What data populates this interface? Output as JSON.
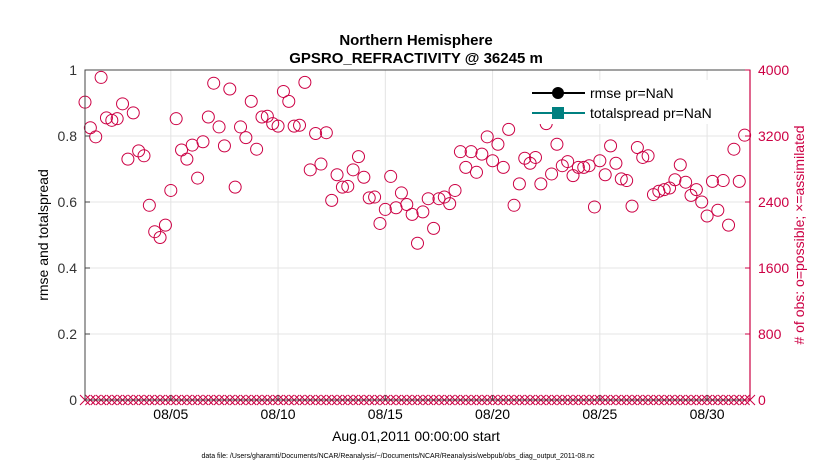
{
  "chart_data": {
    "type": "scatter",
    "title": "Northern Hemisphere",
    "subtitle": "GPSRO_REFRACTIVITY @ 36245 m",
    "xlabel": "Aug.01,2011 00:00:00 start",
    "ylabel_left": "rmse and totalspread",
    "ylabel_right": "# of obs: o=possible; ×=assimilated",
    "footnote": "data file: /Users/gharamti/Documents/NCAR/Reanalysis/~/Documents/NCAR/Reanalysis/webpub/obs_diag_output_2011-08.nc",
    "x_range": [
      1,
      32
    ],
    "ylim_left": [
      0,
      1
    ],
    "ylim_right": [
      0,
      4000
    ],
    "x_ticks": [
      {
        "value": 5,
        "label": "08/05"
      },
      {
        "value": 10,
        "label": "08/10"
      },
      {
        "value": 15,
        "label": "08/15"
      },
      {
        "value": 20,
        "label": "08/20"
      },
      {
        "value": 25,
        "label": "08/25"
      },
      {
        "value": 30,
        "label": "08/30"
      }
    ],
    "y_ticks_left": [
      {
        "value": 0,
        "label": "0"
      },
      {
        "value": 0.2,
        "label": "0.2"
      },
      {
        "value": 0.4,
        "label": "0.4"
      },
      {
        "value": 0.6,
        "label": "0.6"
      },
      {
        "value": 0.8,
        "label": "0.8"
      },
      {
        "value": 1,
        "label": "1"
      }
    ],
    "y_ticks_right": [
      {
        "value": 0,
        "label": "0"
      },
      {
        "value": 800,
        "label": "800"
      },
      {
        "value": 1600,
        "label": "1600"
      },
      {
        "value": 2400,
        "label": "2400"
      },
      {
        "value": 3200,
        "label": "3200"
      },
      {
        "value": 4000,
        "label": "4000"
      }
    ],
    "grid": true,
    "legend_position": "top-right",
    "series": [
      {
        "name": "rmse pr=NaN",
        "axis": "left",
        "color": "#000000",
        "marker": "circle",
        "values": []
      },
      {
        "name": "totalspread pr=NaN",
        "axis": "left",
        "color": "#008080",
        "marker": "square",
        "values": []
      },
      {
        "name": "possible",
        "axis": "right",
        "marker": "circle-open",
        "color": "#cc0044",
        "points": [
          [
            1.0,
            3610
          ],
          [
            1.25,
            3300
          ],
          [
            1.5,
            3190
          ],
          [
            1.75,
            3910
          ],
          [
            2.0,
            3420
          ],
          [
            2.25,
            3390
          ],
          [
            2.5,
            3410
          ],
          [
            2.75,
            3590
          ],
          [
            3.0,
            2920
          ],
          [
            3.25,
            3480
          ],
          [
            3.5,
            3020
          ],
          [
            3.75,
            2960
          ],
          [
            4.0,
            2360
          ],
          [
            4.25,
            2040
          ],
          [
            4.5,
            1970
          ],
          [
            4.75,
            2120
          ],
          [
            5.0,
            2540
          ],
          [
            5.25,
            3410
          ],
          [
            5.5,
            3030
          ],
          [
            5.75,
            2920
          ],
          [
            6.0,
            3090
          ],
          [
            6.25,
            2690
          ],
          [
            6.5,
            3130
          ],
          [
            6.75,
            3430
          ],
          [
            7.0,
            3840
          ],
          [
            7.25,
            3310
          ],
          [
            7.5,
            3080
          ],
          [
            7.75,
            3770
          ],
          [
            8.0,
            2580
          ],
          [
            8.25,
            3310
          ],
          [
            8.5,
            3180
          ],
          [
            8.75,
            3620
          ],
          [
            9.0,
            3040
          ],
          [
            9.25,
            3430
          ],
          [
            9.5,
            3440
          ],
          [
            9.75,
            3350
          ],
          [
            10.0,
            3320
          ],
          [
            10.25,
            3740
          ],
          [
            10.5,
            3620
          ],
          [
            10.75,
            3320
          ],
          [
            11.0,
            3330
          ],
          [
            11.25,
            3850
          ],
          [
            11.5,
            2790
          ],
          [
            11.75,
            3230
          ],
          [
            12.0,
            2860
          ],
          [
            12.25,
            3240
          ],
          [
            12.5,
            2420
          ],
          [
            12.75,
            2730
          ],
          [
            13.0,
            2580
          ],
          [
            13.25,
            2590
          ],
          [
            13.5,
            2790
          ],
          [
            13.75,
            2950
          ],
          [
            14.0,
            2700
          ],
          [
            14.25,
            2450
          ],
          [
            14.5,
            2460
          ],
          [
            14.75,
            2140
          ],
          [
            15.0,
            2310
          ],
          [
            15.25,
            2710
          ],
          [
            15.5,
            2330
          ],
          [
            15.75,
            2510
          ],
          [
            16.0,
            2370
          ],
          [
            16.25,
            2250
          ],
          [
            16.5,
            1900
          ],
          [
            16.75,
            2280
          ],
          [
            17.0,
            2440
          ],
          [
            17.25,
            2080
          ],
          [
            17.5,
            2440
          ],
          [
            17.75,
            2460
          ],
          [
            18.0,
            2380
          ],
          [
            18.25,
            2540
          ],
          [
            18.5,
            3010
          ],
          [
            18.75,
            2820
          ],
          [
            19.0,
            3010
          ],
          [
            19.25,
            2760
          ],
          [
            19.5,
            2980
          ],
          [
            19.75,
            3190
          ],
          [
            20.0,
            2900
          ],
          [
            20.25,
            3100
          ],
          [
            20.5,
            2820
          ],
          [
            20.75,
            3280
          ],
          [
            21.0,
            2360
          ],
          [
            21.25,
            2620
          ],
          [
            21.5,
            2930
          ],
          [
            21.75,
            2870
          ],
          [
            22.0,
            2940
          ],
          [
            22.25,
            2620
          ],
          [
            22.5,
            3350
          ],
          [
            22.75,
            2740
          ],
          [
            23.0,
            3100
          ],
          [
            23.25,
            2840
          ],
          [
            23.5,
            2890
          ],
          [
            23.75,
            2720
          ],
          [
            24.0,
            2820
          ],
          [
            24.25,
            2820
          ],
          [
            24.5,
            2840
          ],
          [
            24.75,
            2340
          ],
          [
            25.0,
            2900
          ],
          [
            25.25,
            2730
          ],
          [
            25.5,
            3080
          ],
          [
            25.75,
            2870
          ],
          [
            26.0,
            2680
          ],
          [
            26.25,
            2660
          ],
          [
            26.5,
            2350
          ],
          [
            26.75,
            3060
          ],
          [
            27.0,
            2940
          ],
          [
            27.25,
            2960
          ],
          [
            27.5,
            2490
          ],
          [
            27.75,
            2530
          ],
          [
            28.0,
            2550
          ],
          [
            28.25,
            2570
          ],
          [
            28.5,
            2670
          ],
          [
            28.75,
            2850
          ],
          [
            29.0,
            2640
          ],
          [
            29.25,
            2480
          ],
          [
            29.5,
            2550
          ],
          [
            29.75,
            2400
          ],
          [
            30.0,
            2230
          ],
          [
            30.25,
            2650
          ],
          [
            30.5,
            2300
          ],
          [
            30.75,
            2660
          ],
          [
            31.0,
            2120
          ],
          [
            31.25,
            3040
          ],
          [
            31.5,
            2650
          ],
          [
            31.75,
            3210
          ]
        ]
      },
      {
        "name": "assimilated",
        "axis": "right",
        "marker": "x",
        "color": "#cc0044",
        "points": [
          [
            1.0,
            0
          ],
          [
            1.25,
            0
          ],
          [
            1.5,
            0
          ],
          [
            1.75,
            0
          ],
          [
            2.0,
            0
          ],
          [
            2.25,
            0
          ],
          [
            2.5,
            0
          ],
          [
            2.75,
            0
          ],
          [
            3.0,
            0
          ],
          [
            3.25,
            0
          ],
          [
            3.5,
            0
          ],
          [
            3.75,
            0
          ],
          [
            4.0,
            0
          ],
          [
            4.25,
            0
          ],
          [
            4.5,
            0
          ],
          [
            4.75,
            0
          ],
          [
            5.0,
            0
          ],
          [
            5.25,
            0
          ],
          [
            5.5,
            0
          ],
          [
            5.75,
            0
          ],
          [
            6.0,
            0
          ],
          [
            6.25,
            0
          ],
          [
            6.5,
            0
          ],
          [
            6.75,
            0
          ],
          [
            7.0,
            0
          ],
          [
            7.25,
            0
          ],
          [
            7.5,
            0
          ],
          [
            7.75,
            0
          ],
          [
            8.0,
            0
          ],
          [
            8.25,
            0
          ],
          [
            8.5,
            0
          ],
          [
            8.75,
            0
          ],
          [
            9.0,
            0
          ],
          [
            9.25,
            0
          ],
          [
            9.5,
            0
          ],
          [
            9.75,
            0
          ],
          [
            10.0,
            0
          ],
          [
            10.25,
            0
          ],
          [
            10.5,
            0
          ],
          [
            10.75,
            0
          ],
          [
            11.0,
            0
          ],
          [
            11.25,
            0
          ],
          [
            11.5,
            0
          ],
          [
            11.75,
            0
          ],
          [
            12.0,
            0
          ],
          [
            12.25,
            0
          ],
          [
            12.5,
            0
          ],
          [
            12.75,
            0
          ],
          [
            13.0,
            0
          ],
          [
            13.25,
            0
          ],
          [
            13.5,
            0
          ],
          [
            13.75,
            0
          ],
          [
            14.0,
            0
          ],
          [
            14.25,
            0
          ],
          [
            14.5,
            0
          ],
          [
            14.75,
            0
          ],
          [
            15.0,
            0
          ],
          [
            15.25,
            0
          ],
          [
            15.5,
            0
          ],
          [
            15.75,
            0
          ],
          [
            16.0,
            0
          ],
          [
            16.25,
            0
          ],
          [
            16.5,
            0
          ],
          [
            16.75,
            0
          ],
          [
            17.0,
            0
          ],
          [
            17.25,
            0
          ],
          [
            17.5,
            0
          ],
          [
            17.75,
            0
          ],
          [
            18.0,
            0
          ],
          [
            18.25,
            0
          ],
          [
            18.5,
            0
          ],
          [
            18.75,
            0
          ],
          [
            19.0,
            0
          ],
          [
            19.25,
            0
          ],
          [
            19.5,
            0
          ],
          [
            19.75,
            0
          ],
          [
            20.0,
            0
          ],
          [
            20.25,
            0
          ],
          [
            20.5,
            0
          ],
          [
            20.75,
            0
          ],
          [
            21.0,
            0
          ],
          [
            21.25,
            0
          ],
          [
            21.5,
            0
          ],
          [
            21.75,
            0
          ],
          [
            22.0,
            0
          ],
          [
            22.25,
            0
          ],
          [
            22.5,
            0
          ],
          [
            22.75,
            0
          ],
          [
            23.0,
            0
          ],
          [
            23.25,
            0
          ],
          [
            23.5,
            0
          ],
          [
            23.75,
            0
          ],
          [
            24.0,
            0
          ],
          [
            24.25,
            0
          ],
          [
            24.5,
            0
          ],
          [
            24.75,
            0
          ],
          [
            25.0,
            0
          ],
          [
            25.25,
            0
          ],
          [
            25.5,
            0
          ],
          [
            25.75,
            0
          ],
          [
            26.0,
            0
          ],
          [
            26.25,
            0
          ],
          [
            26.5,
            0
          ],
          [
            26.75,
            0
          ],
          [
            27.0,
            0
          ],
          [
            27.25,
            0
          ],
          [
            27.5,
            0
          ],
          [
            27.75,
            0
          ],
          [
            28.0,
            0
          ],
          [
            28.25,
            0
          ],
          [
            28.5,
            0
          ],
          [
            28.75,
            0
          ],
          [
            29.0,
            0
          ],
          [
            29.25,
            0
          ],
          [
            29.5,
            0
          ],
          [
            29.75,
            0
          ],
          [
            30.0,
            0
          ],
          [
            30.25,
            0
          ],
          [
            30.5,
            0
          ],
          [
            30.75,
            0
          ],
          [
            31.0,
            0
          ],
          [
            31.25,
            0
          ],
          [
            31.5,
            0
          ],
          [
            31.75,
            0
          ],
          [
            32.0,
            0
          ]
        ]
      }
    ]
  },
  "colors": {
    "right_axis": "#cc0044",
    "left_axis": "#333333",
    "grid": "#e4e4e4",
    "rmse": "#000000",
    "totalspread": "#008080"
  }
}
